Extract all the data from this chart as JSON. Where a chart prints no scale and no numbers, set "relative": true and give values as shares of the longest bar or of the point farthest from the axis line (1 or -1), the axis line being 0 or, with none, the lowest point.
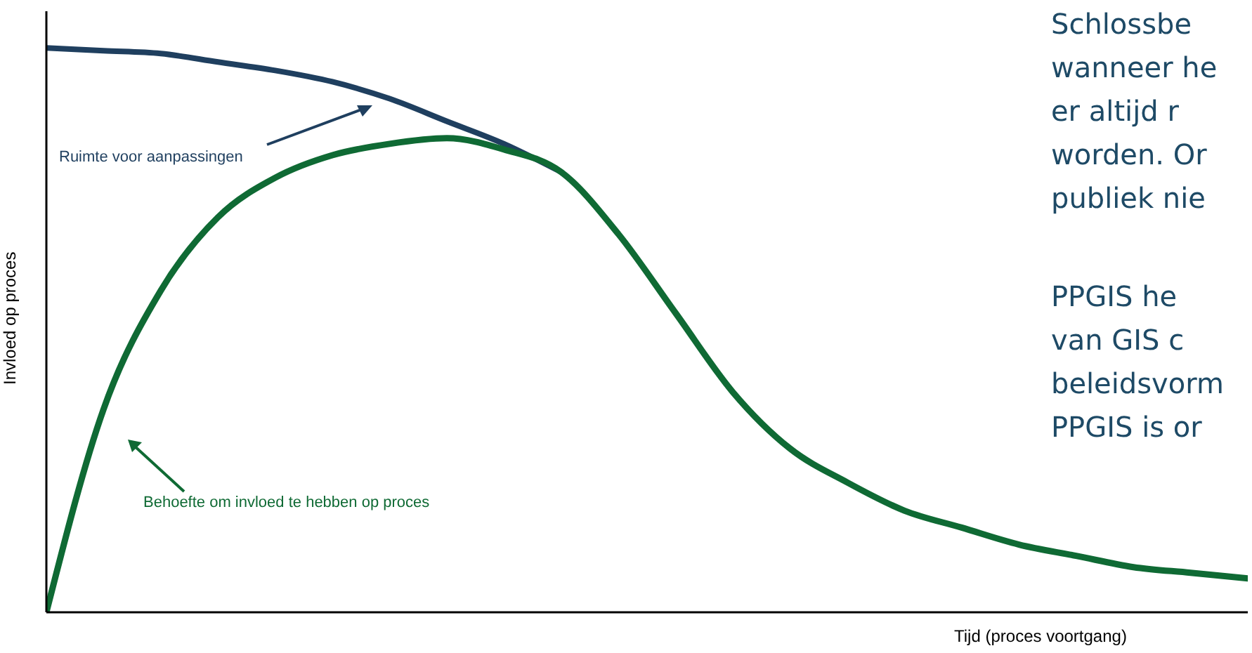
{
  "chart_data": {
    "type": "line",
    "relative": true,
    "xlabel": "Tijd (proces voortgang)",
    "ylabel": "Invloed op proces",
    "categories": [
      null,
      null,
      null,
      null,
      null,
      null,
      null,
      null,
      null,
      null,
      null,
      null,
      null,
      null,
      null,
      null,
      null,
      null,
      null,
      null,
      null,
      null
    ],
    "series": [
      {
        "color": "#1f3f5f",
        "values": [
          1.0,
          0.995,
          0.99,
          0.975,
          0.96,
          0.94,
          0.91,
          0.87,
          0.83,
          0.78,
          null,
          null,
          null,
          null,
          null,
          null,
          null,
          null,
          null,
          null,
          null,
          null
        ]
      },
      {
        "color": "#0f6a34",
        "values": [
          0,
          0.36,
          0.57,
          0.7,
          0.77,
          0.81,
          0.83,
          0.84,
          0.82,
          0.78,
          0.67,
          0.53,
          0.39,
          0.29,
          0.23,
          0.18,
          0.15,
          0.12,
          0.1,
          0.08,
          0.07,
          0.06
        ]
      }
    ],
    "annotations": [
      "Ruimte voor aanpassingen",
      "Behoefte om invloed te hebben op proces",
      "Schlossbe\nwanneer he\ner altijd r\nworden. Or\npubliek nie",
      "PPGIS he\nvan GIS c\nbeleidsvorm\nPPGIS is or"
    ],
    "grid": false,
    "legend": false,
    "marker": "none",
    "line_style": "solid"
  }
}
